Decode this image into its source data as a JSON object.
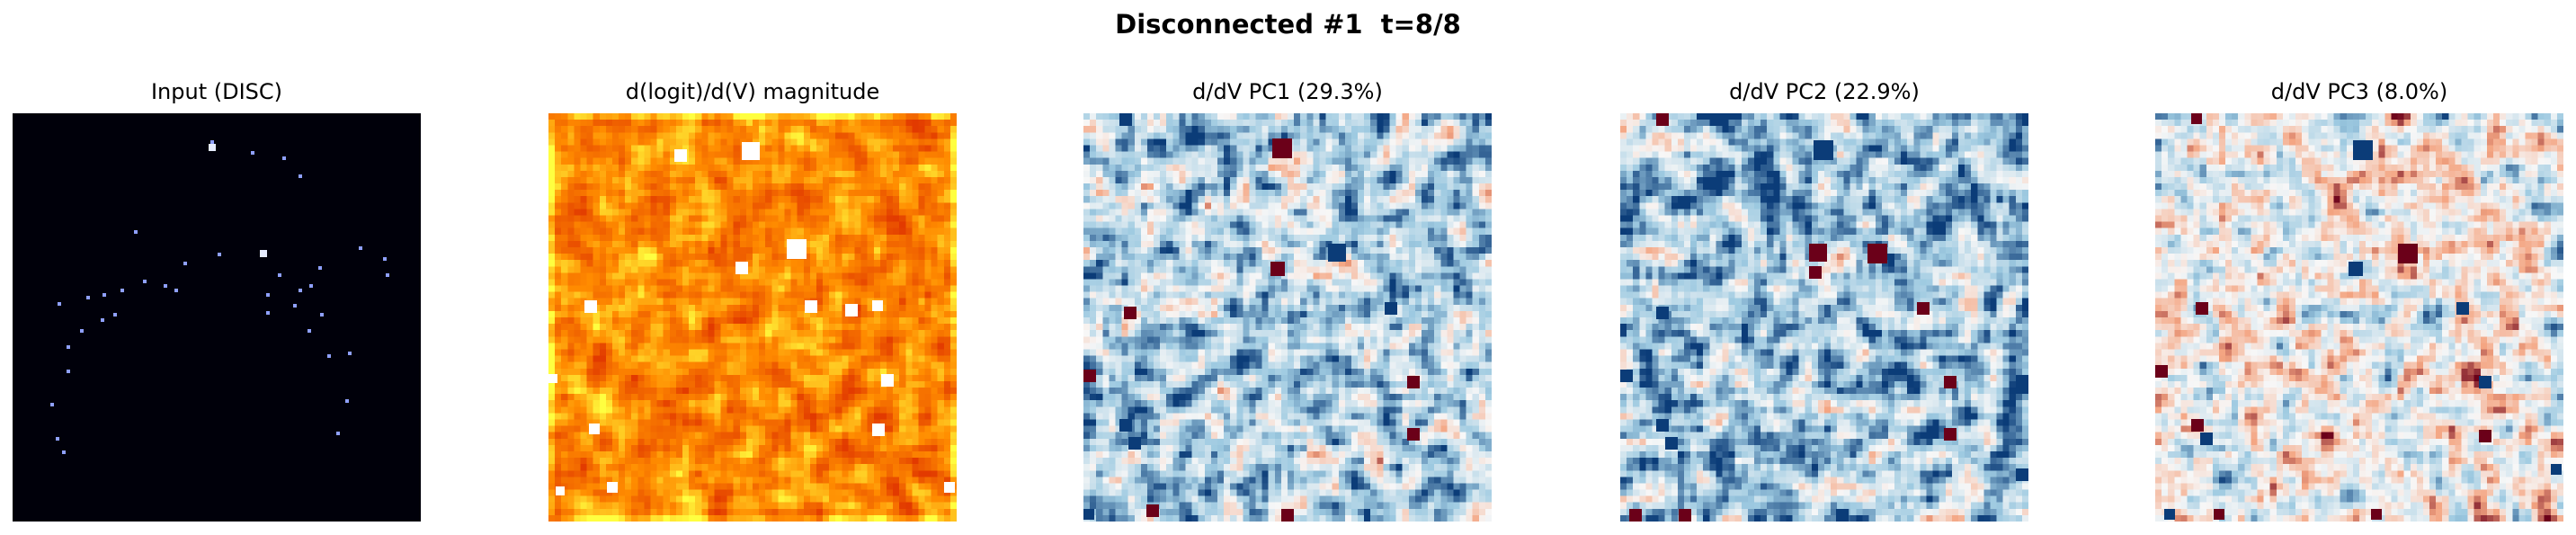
{
  "figure": {
    "suptitle": "Disconnected #1  t=8/8"
  },
  "chart_data": [
    {
      "type": "heatmap",
      "title": "Input (DISC)",
      "colormap": "black background, light-blue sparse points",
      "colors": {
        "background": "#00000a",
        "point": "#8fa0ff",
        "bright": "#e6ecff"
      },
      "axes": "off"
    },
    {
      "type": "heatmap",
      "title": "d(logit)/d(V) magnitude",
      "colormap": "hot (red-orange-yellow-white)",
      "colors": {
        "low": "#e23a00",
        "mid": "#ff8c00",
        "high": "#ffff40",
        "max": "#ffffff"
      },
      "axes": "off"
    },
    {
      "type": "heatmap",
      "title": "d/dV PC1 (29.3%)",
      "colormap": "RdBu (diverging)",
      "colors": {
        "negative": "#0b3c78",
        "neutral": "#f7f7f7",
        "positive": "#6b0019"
      },
      "axes": "off"
    },
    {
      "type": "heatmap",
      "title": "d/dV PC2 (22.9%)",
      "colormap": "RdBu (diverging)",
      "colors": {
        "negative": "#0b3c78",
        "neutral": "#f7f7f7",
        "positive": "#6b0019"
      },
      "axes": "off"
    },
    {
      "type": "heatmap",
      "title": "d/dV PC3 (8.0%)",
      "colormap": "RdBu (diverging)",
      "colors": {
        "negative": "#0b3c78",
        "neutral": "#f7f7f7",
        "positive": "#6b0019"
      },
      "axes": "off"
    }
  ]
}
